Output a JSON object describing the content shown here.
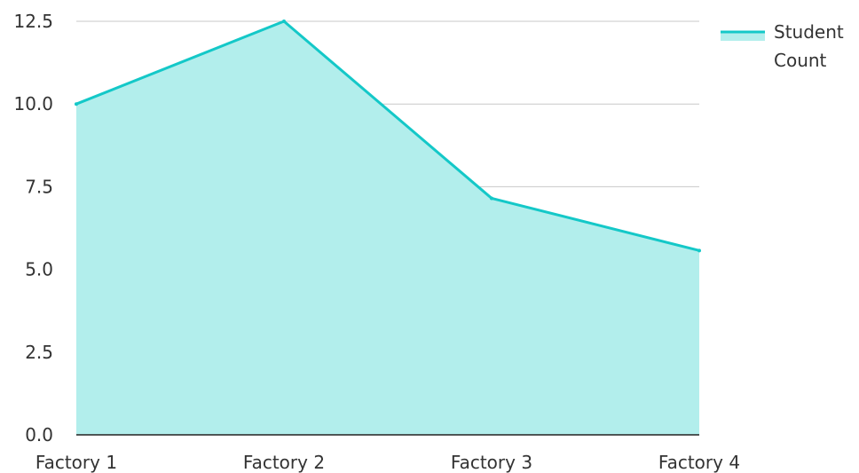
{
  "chart_data": {
    "type": "area",
    "categories": [
      "Factory 1",
      "Factory 2",
      "Factory 3",
      "Factory 4"
    ],
    "series": [
      {
        "name": "Student Count",
        "values": [
          10.0,
          12.5,
          7.15,
          5.57
        ]
      }
    ],
    "y_ticks": [
      "0.0",
      "2.5",
      "5.0",
      "7.5",
      "10.0",
      "12.5"
    ],
    "ylim": [
      0,
      12.5
    ],
    "grid": true,
    "legend": {
      "position": "top-right",
      "label_lines": [
        "Student",
        "Count"
      ]
    },
    "colors": {
      "line": "#14c8c8",
      "fill": "#b2eeec",
      "grid": "#c8c8c8",
      "axis": "#222222"
    },
    "title": "",
    "xlabel": "",
    "ylabel": ""
  }
}
